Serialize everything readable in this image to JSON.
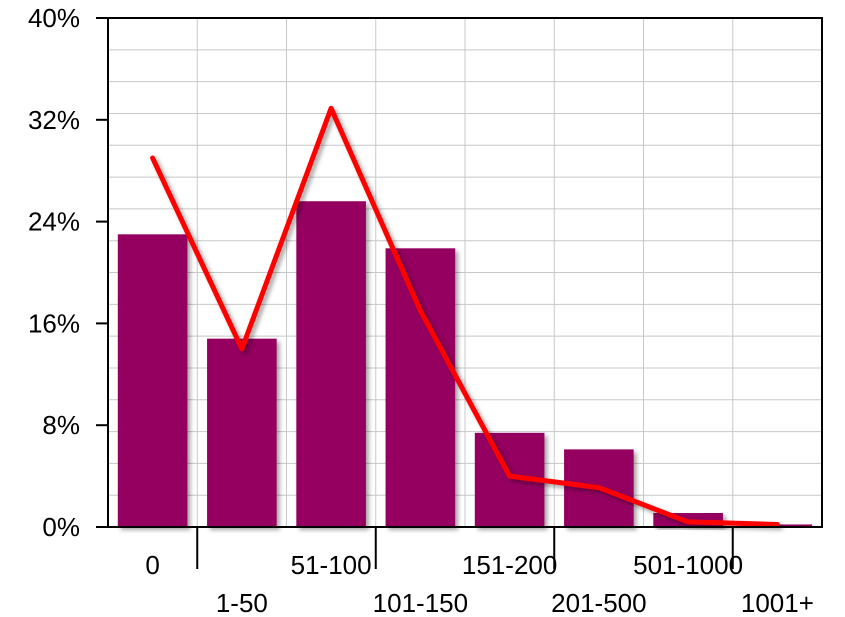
{
  "chart_data": {
    "type": "bar",
    "categories": [
      "0",
      "1-50",
      "51-100",
      "101-150",
      "151-200",
      "201-500",
      "501-1000",
      "1001+"
    ],
    "series": [
      {
        "type": "bar",
        "values": [
          23.0,
          14.8,
          25.6,
          21.9,
          7.4,
          6.1,
          1.1,
          0.2
        ]
      },
      {
        "type": "line",
        "values": [
          29.0,
          14.0,
          32.9,
          17.0,
          4.0,
          3.1,
          0.4,
          0.2
        ]
      }
    ],
    "y_ticks": [
      "0%",
      "8%",
      "16%",
      "24%",
      "32%",
      "40%"
    ],
    "ylim": [
      0,
      40
    ],
    "grid": true,
    "colors": {
      "bar": "#950060",
      "line": "#ff0000",
      "grid": "#c8c8c8",
      "axis": "#000000"
    }
  }
}
